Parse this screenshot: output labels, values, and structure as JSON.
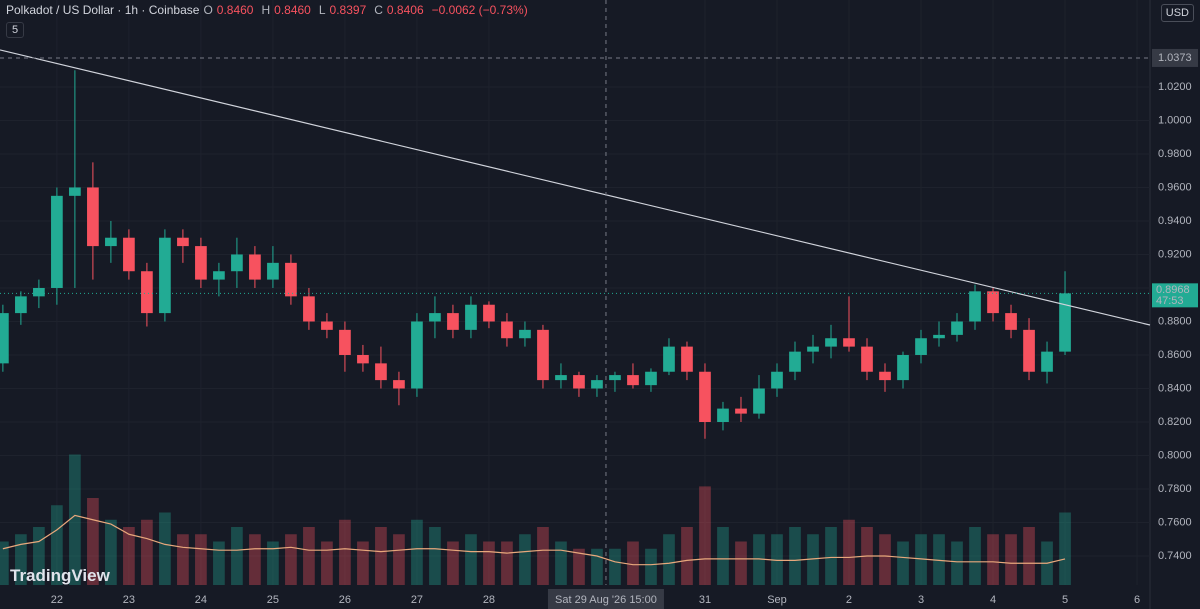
{
  "chart_data": {
    "type": "candlestick",
    "header": {
      "symbol": "Polkadot / US Dollar · 1h · Coinbase",
      "ohlc": [
        {
          "key": "O",
          "value": "0.8460"
        },
        {
          "key": "H",
          "value": "0.8460"
        },
        {
          "key": "L",
          "value": "0.8397"
        },
        {
          "key": "C",
          "value": "0.8406"
        }
      ],
      "change": "−0.0062 (−0.73%)",
      "indicators": "5",
      "currency": "USD"
    },
    "watermark": "TradingView",
    "up_color": "#22ab94",
    "down_color": "#f7525f",
    "volume_ma_color": "#e8a87c",
    "grid": true,
    "x": [
      -0.75,
      -0.5,
      -0.25,
      0,
      0.25,
      0.5,
      0.75,
      1,
      1.25,
      1.5,
      1.75,
      2,
      2.25,
      2.5,
      2.75,
      3,
      3.25,
      3.5,
      3.75,
      4,
      4.25,
      4.5,
      4.75,
      5,
      5.25,
      5.5,
      5.75,
      6,
      6.25,
      6.5,
      6.75,
      7,
      7.25,
      7.5,
      7.75,
      8,
      8.25,
      8.5,
      8.75,
      9,
      9.25,
      9.5,
      9.75,
      10,
      10.25,
      10.5,
      10.75,
      11,
      11.25,
      11.5,
      11.75,
      12,
      12.25,
      12.5,
      12.75,
      13,
      13.25,
      13.5,
      13.75,
      14
    ],
    "open": [
      0.855,
      0.885,
      0.895,
      0.9,
      0.955,
      0.96,
      0.925,
      0.93,
      0.91,
      0.885,
      0.93,
      0.925,
      0.905,
      0.91,
      0.92,
      0.905,
      0.915,
      0.895,
      0.88,
      0.875,
      0.86,
      0.855,
      0.845,
      0.84,
      0.88,
      0.885,
      0.875,
      0.89,
      0.88,
      0.87,
      0.875,
      0.845,
      0.848,
      0.84,
      0.845,
      0.848,
      0.842,
      0.85,
      0.865,
      0.85,
      0.82,
      0.828,
      0.825,
      0.84,
      0.85,
      0.862,
      0.865,
      0.87,
      0.865,
      0.85,
      0.845,
      0.86,
      0.87,
      0.872,
      0.88,
      0.898,
      0.885,
      0.875,
      0.85,
      0.862
    ],
    "high": [
      0.89,
      0.898,
      0.905,
      0.96,
      1.03,
      0.975,
      0.94,
      0.935,
      0.915,
      0.935,
      0.935,
      0.93,
      0.915,
      0.93,
      0.925,
      0.925,
      0.92,
      0.9,
      0.885,
      0.88,
      0.866,
      0.865,
      0.85,
      0.885,
      0.895,
      0.89,
      0.895,
      0.892,
      0.885,
      0.88,
      0.878,
      0.855,
      0.85,
      0.848,
      0.85,
      0.855,
      0.852,
      0.87,
      0.868,
      0.855,
      0.832,
      0.835,
      0.848,
      0.855,
      0.868,
      0.872,
      0.878,
      0.895,
      0.87,
      0.855,
      0.862,
      0.875,
      0.88,
      0.885,
      0.902,
      0.9,
      0.89,
      0.882,
      0.868,
      0.91
    ],
    "low": [
      0.85,
      0.878,
      0.888,
      0.89,
      0.9,
      0.905,
      0.915,
      0.905,
      0.877,
      0.88,
      0.915,
      0.9,
      0.895,
      0.9,
      0.9,
      0.9,
      0.89,
      0.875,
      0.87,
      0.85,
      0.85,
      0.84,
      0.83,
      0.835,
      0.87,
      0.87,
      0.87,
      0.876,
      0.865,
      0.865,
      0.84,
      0.84,
      0.835,
      0.835,
      0.838,
      0.84,
      0.838,
      0.848,
      0.845,
      0.81,
      0.815,
      0.82,
      0.822,
      0.835,
      0.845,
      0.855,
      0.858,
      0.862,
      0.845,
      0.838,
      0.84,
      0.855,
      0.865,
      0.868,
      0.875,
      0.88,
      0.87,
      0.845,
      0.843,
      0.86
    ],
    "close": [
      0.885,
      0.895,
      0.9,
      0.955,
      0.96,
      0.925,
      0.93,
      0.91,
      0.885,
      0.93,
      0.925,
      0.905,
      0.91,
      0.92,
      0.905,
      0.915,
      0.895,
      0.88,
      0.875,
      0.86,
      0.855,
      0.845,
      0.84,
      0.88,
      0.885,
      0.875,
      0.89,
      0.88,
      0.87,
      0.875,
      0.845,
      0.848,
      0.84,
      0.845,
      0.848,
      0.842,
      0.85,
      0.865,
      0.85,
      0.82,
      0.828,
      0.825,
      0.84,
      0.85,
      0.862,
      0.865,
      0.87,
      0.865,
      0.85,
      0.845,
      0.86,
      0.87,
      0.872,
      0.88,
      0.898,
      0.885,
      0.875,
      0.85,
      0.862,
      0.8968
    ],
    "volume": [
      30,
      35,
      40,
      55,
      90,
      60,
      45,
      40,
      45,
      50,
      35,
      35,
      30,
      40,
      35,
      30,
      35,
      40,
      30,
      45,
      30,
      40,
      35,
      45,
      40,
      30,
      35,
      30,
      30,
      35,
      40,
      30,
      25,
      25,
      25,
      30,
      25,
      35,
      40,
      68,
      40,
      30,
      35,
      35,
      40,
      35,
      40,
      45,
      40,
      35,
      30,
      35,
      35,
      30,
      40,
      35,
      35,
      40,
      30,
      50
    ],
    "volume_ma": [
      25,
      28,
      30,
      38,
      48,
      45,
      42,
      35,
      32,
      28,
      26,
      25,
      24,
      24,
      25,
      25,
      26,
      24,
      24,
      25,
      24,
      23,
      24,
      25,
      25,
      24,
      23,
      23,
      22,
      23,
      24,
      24,
      22,
      20,
      16,
      14,
      14,
      15,
      17,
      18,
      18,
      18,
      18,
      17,
      17,
      18,
      19,
      19,
      20,
      20,
      19,
      18,
      17,
      16,
      16,
      16,
      15,
      15,
      15,
      18
    ],
    "volume_lim": [
      0,
      100
    ],
    "trendline": {
      "x": [
        -0.79,
        15.18
      ],
      "y": [
        1.0421,
        0.8779
      ]
    },
    "crosshair": {
      "x": 7.625,
      "x_label": "Sat 29 Aug '26  15:00",
      "y": 1.0373
    },
    "last_price": {
      "value": 0.8968,
      "countdown": "47:53"
    },
    "xlim": [
      -0.79,
      15.18
    ],
    "ylim": [
      0.7227,
      1.0719
    ],
    "xticks": [
      {
        "value": 0,
        "label": "22"
      },
      {
        "value": 1,
        "label": "23"
      },
      {
        "value": 2,
        "label": "24"
      },
      {
        "value": 3,
        "label": "25"
      },
      {
        "value": 4,
        "label": "26"
      },
      {
        "value": 5,
        "label": "27"
      },
      {
        "value": 6,
        "label": "28"
      },
      {
        "value": 9,
        "label": "31"
      },
      {
        "value": 10,
        "label": "Sep"
      },
      {
        "value": 11,
        "label": "2"
      },
      {
        "value": 12,
        "label": "3"
      },
      {
        "value": 13,
        "label": "4"
      },
      {
        "value": 14,
        "label": "5"
      },
      {
        "value": 15,
        "label": "6"
      }
    ],
    "yticks": [
      {
        "value": 1.02,
        "label": "1.0200"
      },
      {
        "value": 1,
        "label": "1.0000"
      },
      {
        "value": 0.98,
        "label": "0.9800"
      },
      {
        "value": 0.96,
        "label": "0.9600"
      },
      {
        "value": 0.94,
        "label": "0.9400"
      },
      {
        "value": 0.92,
        "label": "0.9200"
      },
      {
        "value": 0.9,
        "label": "0.9000"
      },
      {
        "value": 0.88,
        "label": "0.8800"
      },
      {
        "value": 0.86,
        "label": "0.8600"
      },
      {
        "value": 0.84,
        "label": "0.8400"
      },
      {
        "value": 0.82,
        "label": "0.8200"
      },
      {
        "value": 0.8,
        "label": "0.8000"
      },
      {
        "value": 0.78,
        "label": "0.7800"
      },
      {
        "value": 0.76,
        "label": "0.7600"
      },
      {
        "value": 0.74,
        "label": "0.7400"
      }
    ]
  }
}
